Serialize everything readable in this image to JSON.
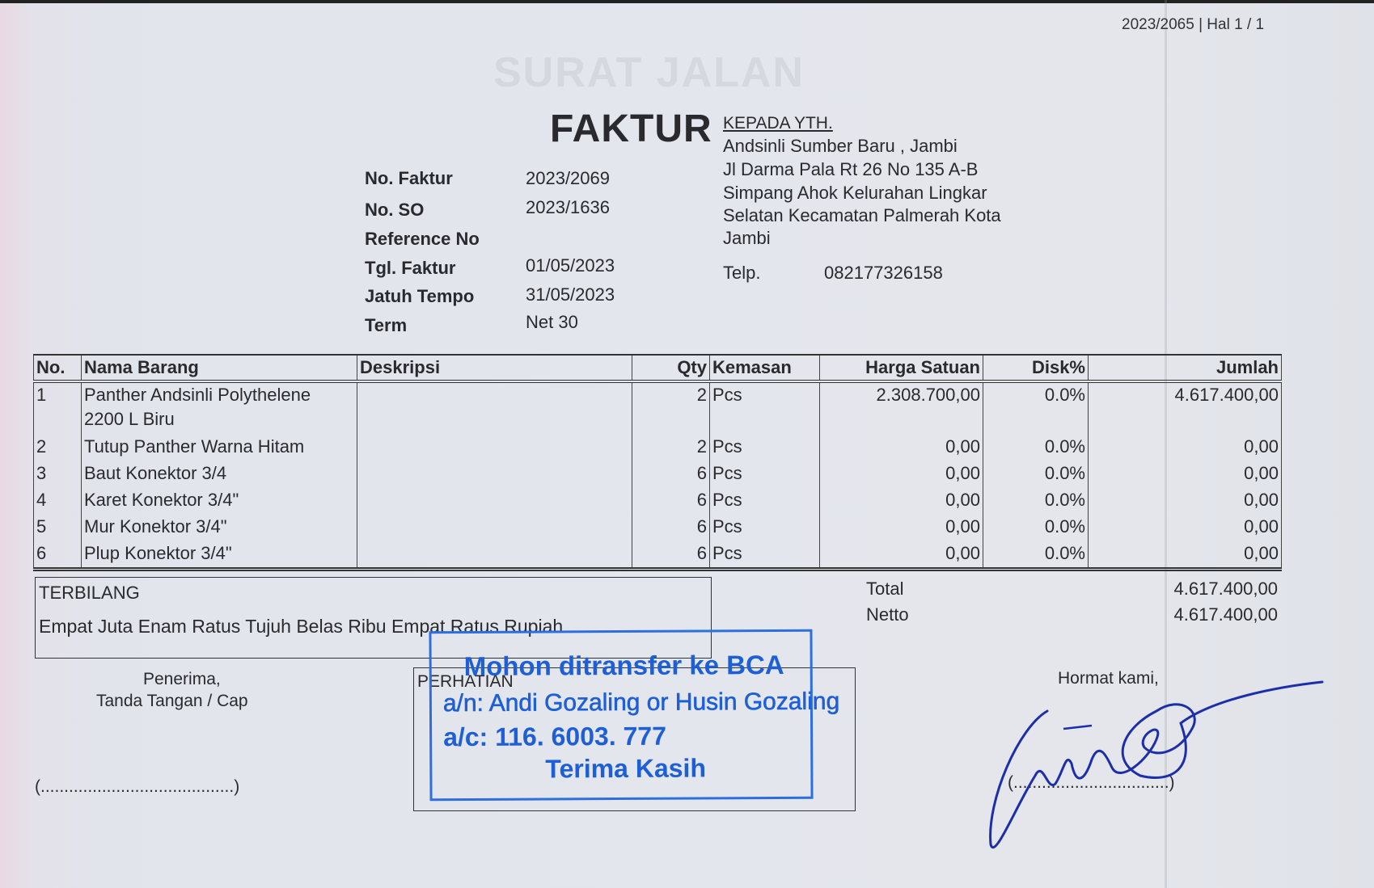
{
  "header": {
    "doc_ref": "2023/2065 | Hal 1 / 1"
  },
  "ghost_text": "SURAT JALAN",
  "title": "FAKTUR",
  "meta": [
    {
      "label": "No. Faktur",
      "value": "2023/2069"
    },
    {
      "label": "No. SO",
      "value": "2023/1636"
    },
    {
      "label": "Reference No",
      "value": ""
    },
    {
      "label": "Tgl. Faktur",
      "value": "01/05/2023"
    },
    {
      "label": "Jatuh Tempo",
      "value": "31/05/2023"
    },
    {
      "label": "Term",
      "value": "Net 30"
    }
  ],
  "recipient": {
    "heading": "KEPADA YTH.",
    "lines": [
      "Andsinli Sumber Baru , Jambi",
      "Jl Darma Pala Rt 26 No 135 A-B",
      "Simpang Ahok Kelurahan Lingkar",
      "Selatan Kecamatan Palmerah Kota",
      "Jambi"
    ],
    "phone_label": "Telp.",
    "phone": "082177326158"
  },
  "table": {
    "columns": [
      "No.",
      "Nama Barang",
      "Deskripsi",
      "Qty",
      "Kemasan",
      "Harga Satuan",
      "Disk%",
      "Jumlah"
    ],
    "rows": [
      {
        "no": "1",
        "name": "Panther Andsinli Polythelene",
        "name2": "2200 L Biru",
        "desc": "",
        "qty": "2",
        "unit": "Pcs",
        "price": "2.308.700,00",
        "disc": "0.0%",
        "total": "4.617.400,00"
      },
      {
        "no": "2",
        "name": "Tutup Panther Warna Hitam",
        "desc": "",
        "qty": "2",
        "unit": "Pcs",
        "price": "0,00",
        "disc": "0.0%",
        "total": "0,00"
      },
      {
        "no": "3",
        "name": "Baut Konektor 3/4",
        "desc": "",
        "qty": "6",
        "unit": "Pcs",
        "price": "0,00",
        "disc": "0.0%",
        "total": "0,00"
      },
      {
        "no": "4",
        "name": "Karet Konektor 3/4\"",
        "desc": "",
        "qty": "6",
        "unit": "Pcs",
        "price": "0,00",
        "disc": "0.0%",
        "total": "0,00"
      },
      {
        "no": "5",
        "name": "Mur Konektor 3/4\"",
        "desc": "",
        "qty": "6",
        "unit": "Pcs",
        "price": "0,00",
        "disc": "0.0%",
        "total": "0,00"
      },
      {
        "no": "6",
        "name": "Plup Konektor 3/4\"",
        "desc": "",
        "qty": "6",
        "unit": "Pcs",
        "price": "0,00",
        "disc": "0.0%",
        "total": "0,00"
      }
    ]
  },
  "terbilang": {
    "label": "TERBILANG",
    "text": "Empat Juta Enam Ratus Tujuh Belas Ribu Empat Ratus Rupiah"
  },
  "totals": {
    "total_label": "Total",
    "total": "4.617.400,00",
    "netto_label": "Netto",
    "netto": "4.617.400,00"
  },
  "receiver": {
    "line1": "Penerima,",
    "line2": "Tanda Tangan / Cap",
    "blank": "(.........................................)"
  },
  "notice": {
    "label": "PERHATIAN"
  },
  "stamp": {
    "line1": "Mohon ditransfer ke BCA",
    "line2": "a/n: Andi Gozaling or Husin Gozaling",
    "line3": "a/c: 116. 6003. 777",
    "line4": "Terima Kasih",
    "color": "#1f5fd6"
  },
  "sender": {
    "line1": "Hormat kami,",
    "blank": "(.................................)"
  }
}
